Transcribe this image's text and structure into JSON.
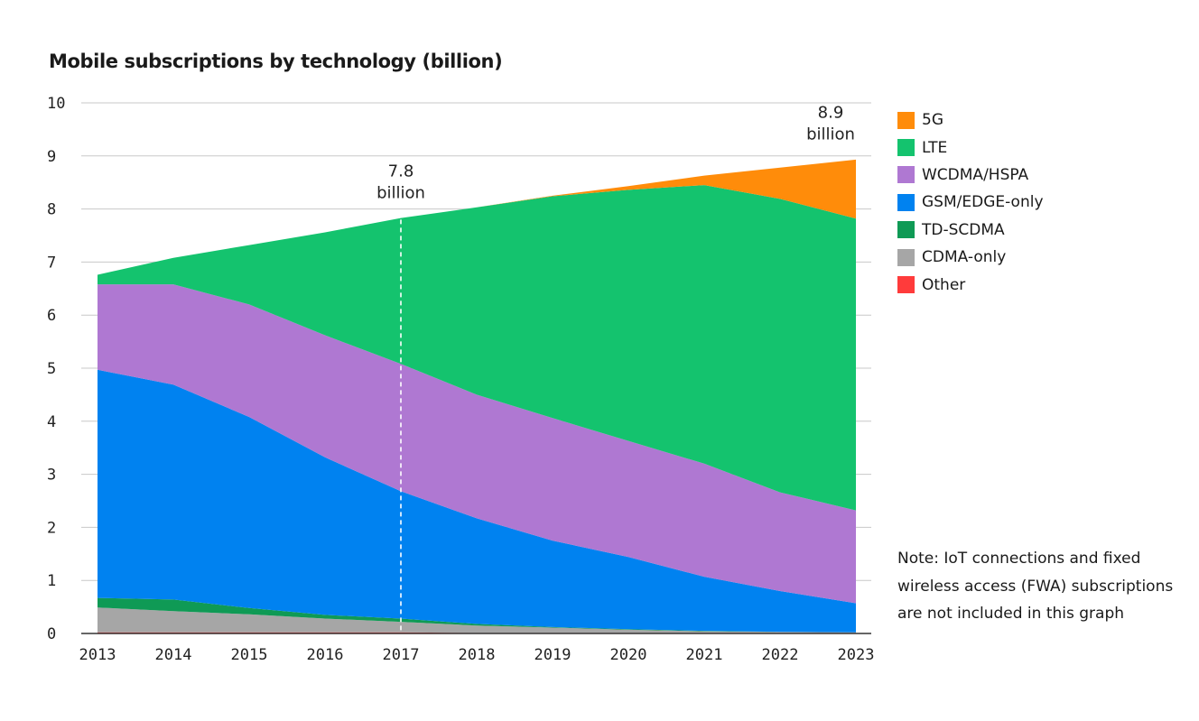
{
  "chart_data": {
    "type": "area",
    "stacked": true,
    "title": "Mobile subscriptions by technology (billion)",
    "xlabel": "",
    "ylabel": "",
    "ylim": [
      0,
      10
    ],
    "yticks": [
      "0",
      "1",
      "2",
      "3",
      "4",
      "5",
      "6",
      "7",
      "8",
      "9",
      "10"
    ],
    "categories": [
      "2013",
      "2014",
      "2015",
      "2016",
      "2017",
      "2018",
      "2019",
      "2020",
      "2021",
      "2022",
      "2023"
    ],
    "grid": "horizontal",
    "legend_position": "right",
    "series": [
      {
        "name": "Other",
        "color": "#ff3b3b",
        "values": [
          0.02,
          0.02,
          0.02,
          0.02,
          0.02,
          0.01,
          0.01,
          0.01,
          0.01,
          0.01,
          0.01
        ]
      },
      {
        "name": "CDMA-only",
        "color": "#a6a6a6",
        "values": [
          0.47,
          0.4,
          0.34,
          0.26,
          0.2,
          0.14,
          0.1,
          0.06,
          0.03,
          0.02,
          0.01
        ]
      },
      {
        "name": "TD-SCDMA",
        "color": "#0f9a55",
        "values": [
          0.18,
          0.22,
          0.12,
          0.07,
          0.06,
          0.03,
          0.01,
          0.01,
          0.01,
          0.0,
          0.0
        ]
      },
      {
        "name": "GSM/EDGE-only",
        "color": "#0082f0",
        "values": [
          4.3,
          4.05,
          3.6,
          2.97,
          2.4,
          1.99,
          1.63,
          1.36,
          1.02,
          0.77,
          0.55
        ]
      },
      {
        "name": "WCDMA/HSPA",
        "color": "#af78d2",
        "values": [
          1.61,
          1.89,
          2.12,
          2.3,
          2.4,
          2.33,
          2.31,
          2.19,
          2.13,
          1.86,
          1.75
        ]
      },
      {
        "name": "LTE",
        "color": "#14c36e",
        "values": [
          0.18,
          0.5,
          1.12,
          1.94,
          2.75,
          3.53,
          4.18,
          4.73,
          5.25,
          5.53,
          5.5
        ]
      },
      {
        "name": "5G",
        "color": "#ff8c0a",
        "values": [
          0,
          0,
          0,
          0,
          0,
          0,
          0.01,
          0.07,
          0.18,
          0.59,
          1.11
        ]
      }
    ],
    "annotations": [
      {
        "category": "2017",
        "value": 7.8,
        "lines": [
          "7.8",
          "billion"
        ]
      },
      {
        "category": "2023",
        "value": 8.9,
        "lines": [
          "8.9",
          "billion"
        ]
      }
    ],
    "legend_order": [
      "5G",
      "LTE",
      "WCDMA/HSPA",
      "GSM/EDGE-only",
      "TD-SCDMA",
      "CDMA-only",
      "Other"
    ]
  },
  "note": "Note: IoT connections and fixed wireless access (FWA) subscriptions are not included in this graph"
}
